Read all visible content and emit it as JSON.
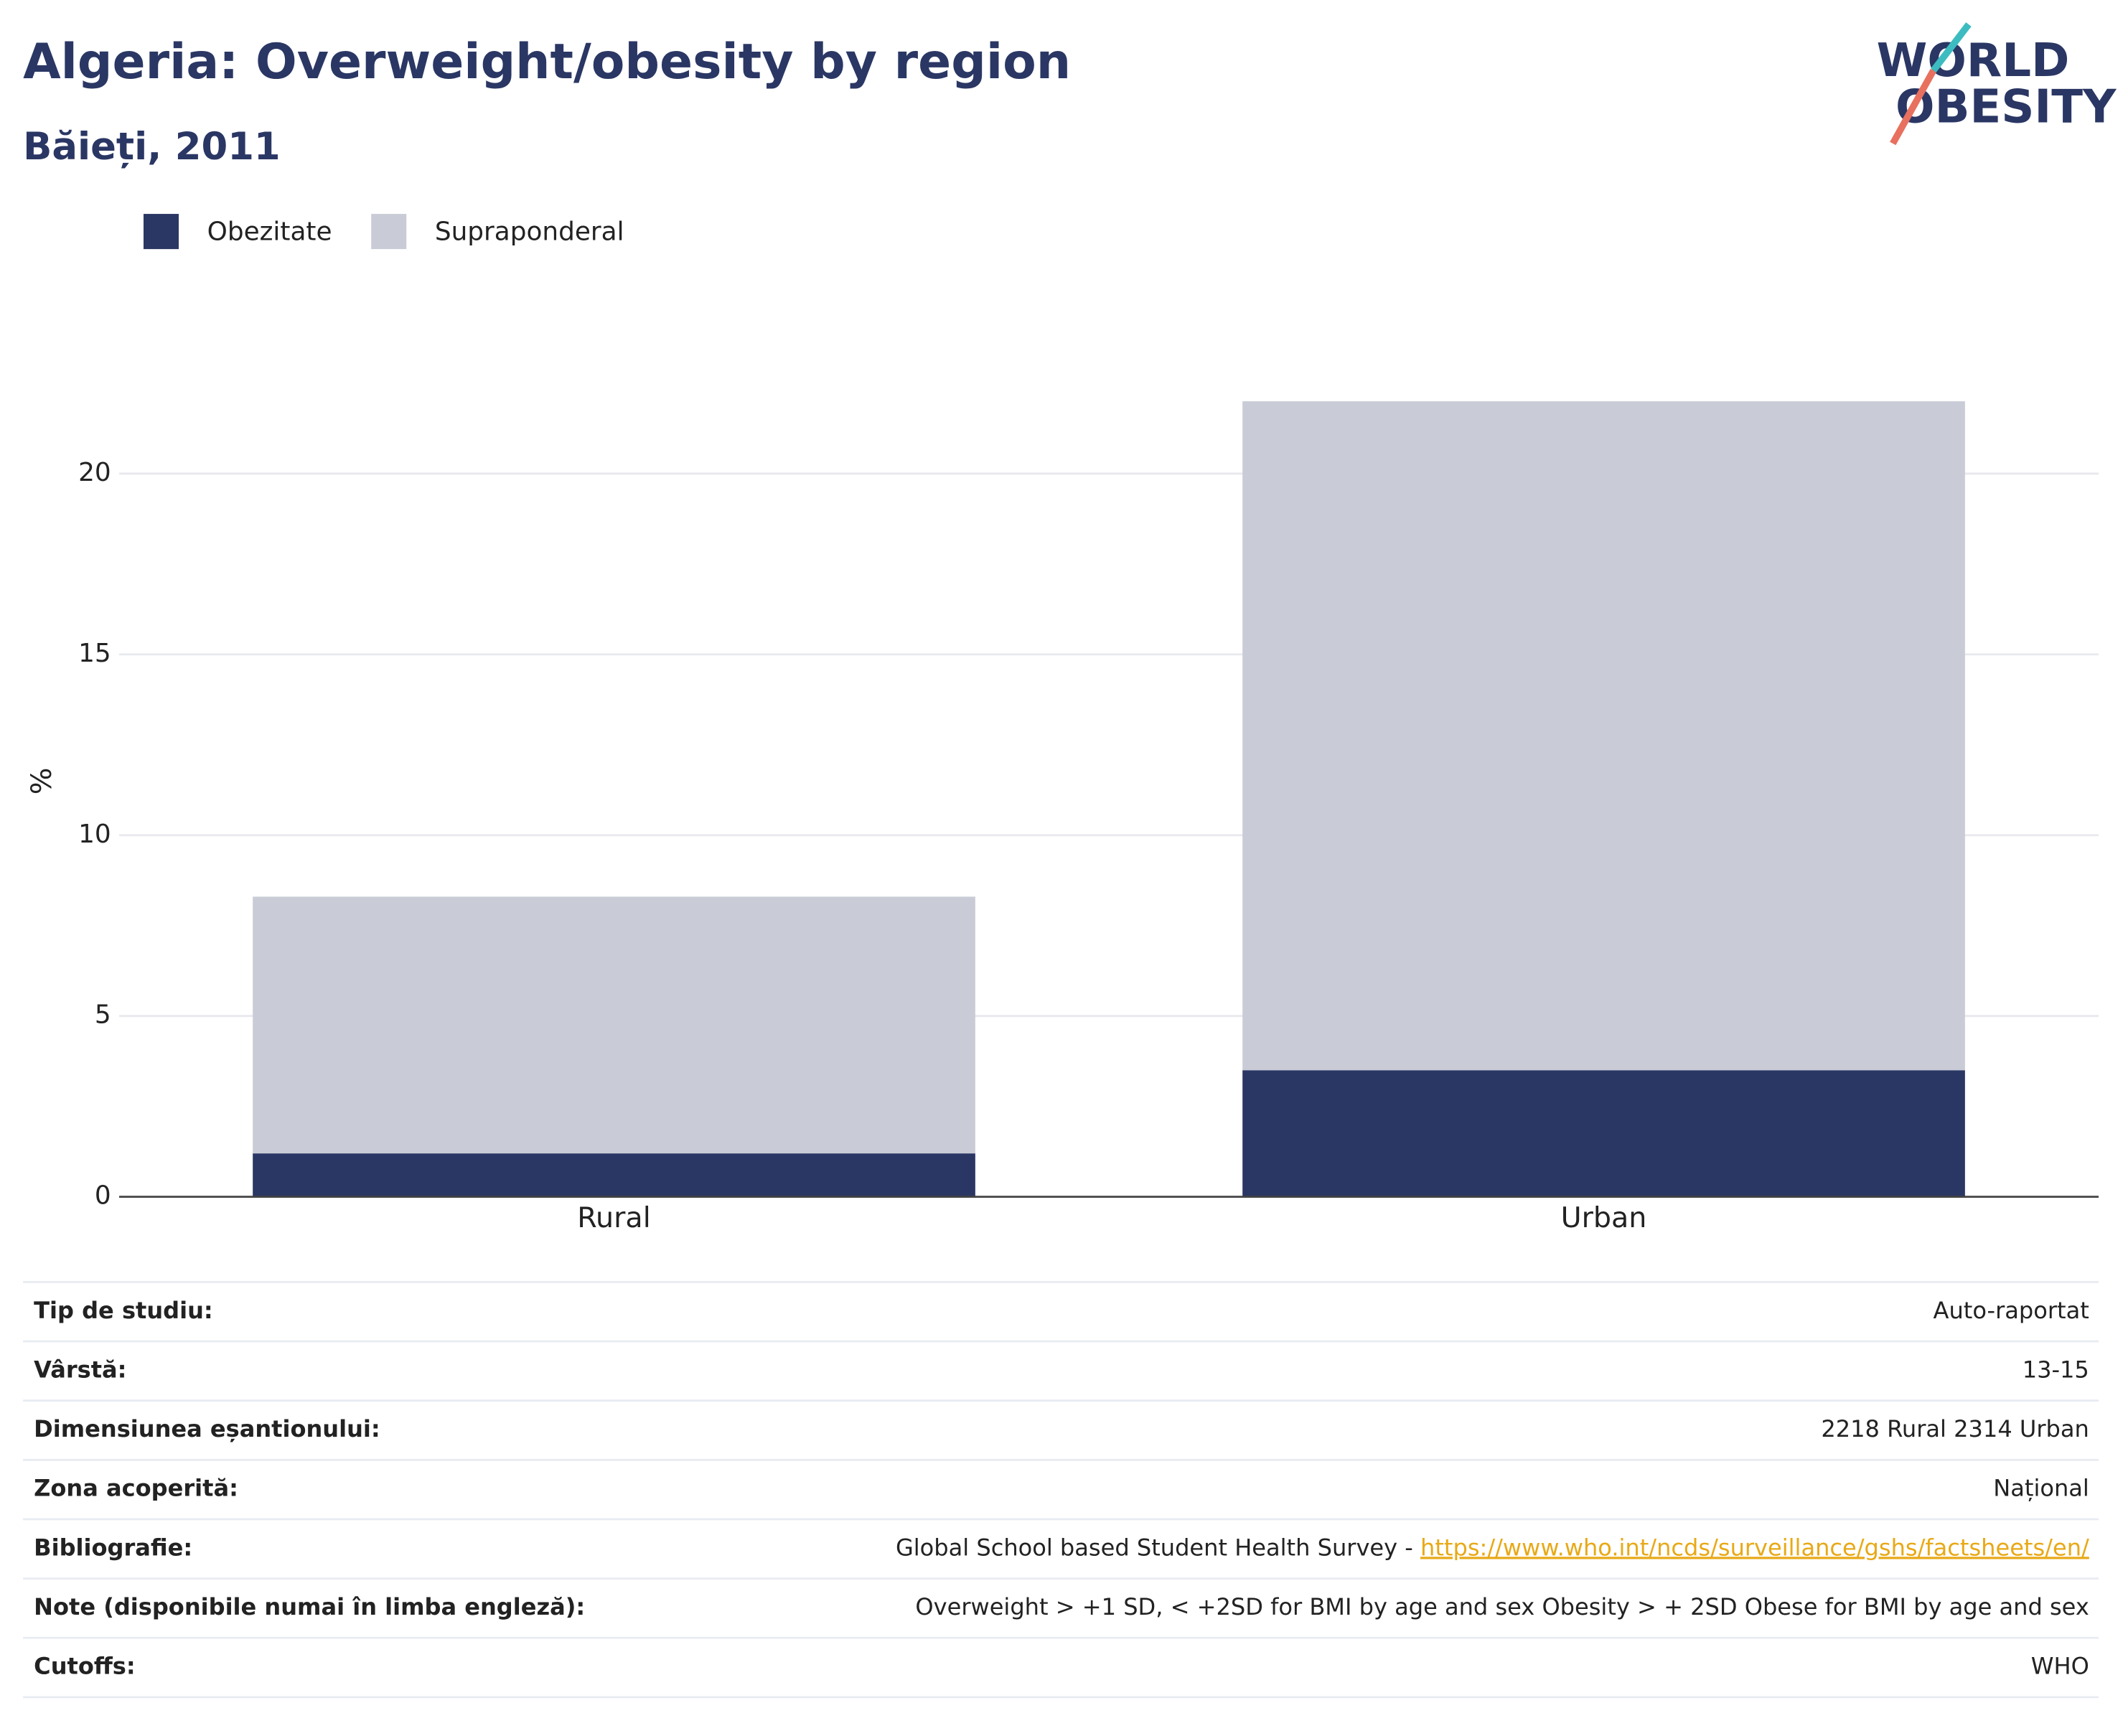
{
  "chart_data": {
    "type": "stacked_bar",
    "title": "Algeria: Overweight/obesity by region",
    "subtitle": "Băieți, 2011",
    "y_label": "%",
    "categories": [
      "Rural",
      "Urban"
    ],
    "series": [
      {
        "name": "Obezitate",
        "color": "#2a3764",
        "values": [
          1.2,
          3.5
        ]
      },
      {
        "name": "Supraponderal",
        "color": "#c9cbd6",
        "values": [
          7.1,
          18.5
        ]
      }
    ],
    "ylim": [
      0,
      24
    ],
    "yticks": [
      0,
      5,
      10,
      15,
      20
    ],
    "grid": true,
    "legend": "top-left"
  },
  "logo": [
    "WORLD",
    "OBESITY"
  ],
  "details": [
    {
      "label": "Tip de studiu:",
      "value": "Auto-raportat"
    },
    {
      "label": "Vârstă:",
      "value": "13-15"
    },
    {
      "label": "Dimensiunea eșantionului:",
      "value": "2218 Rural 2314 Urban"
    },
    {
      "label": "Zona acoperită:",
      "value": "Național"
    },
    {
      "label": "Bibliografie:",
      "value": "Global School based Student Health Survey - ",
      "link": "https://www.who.int/ncds/surveillance/gshs/factsheets/en/"
    },
    {
      "label": "Note (disponibile numai în limba engleză):",
      "value": "Overweight > +1 SD, < +2SD for BMI by age and sex Obesity > + 2SD Obese for BMI by age and sex"
    },
    {
      "label": "Cutoffs:",
      "value": "WHO"
    }
  ]
}
